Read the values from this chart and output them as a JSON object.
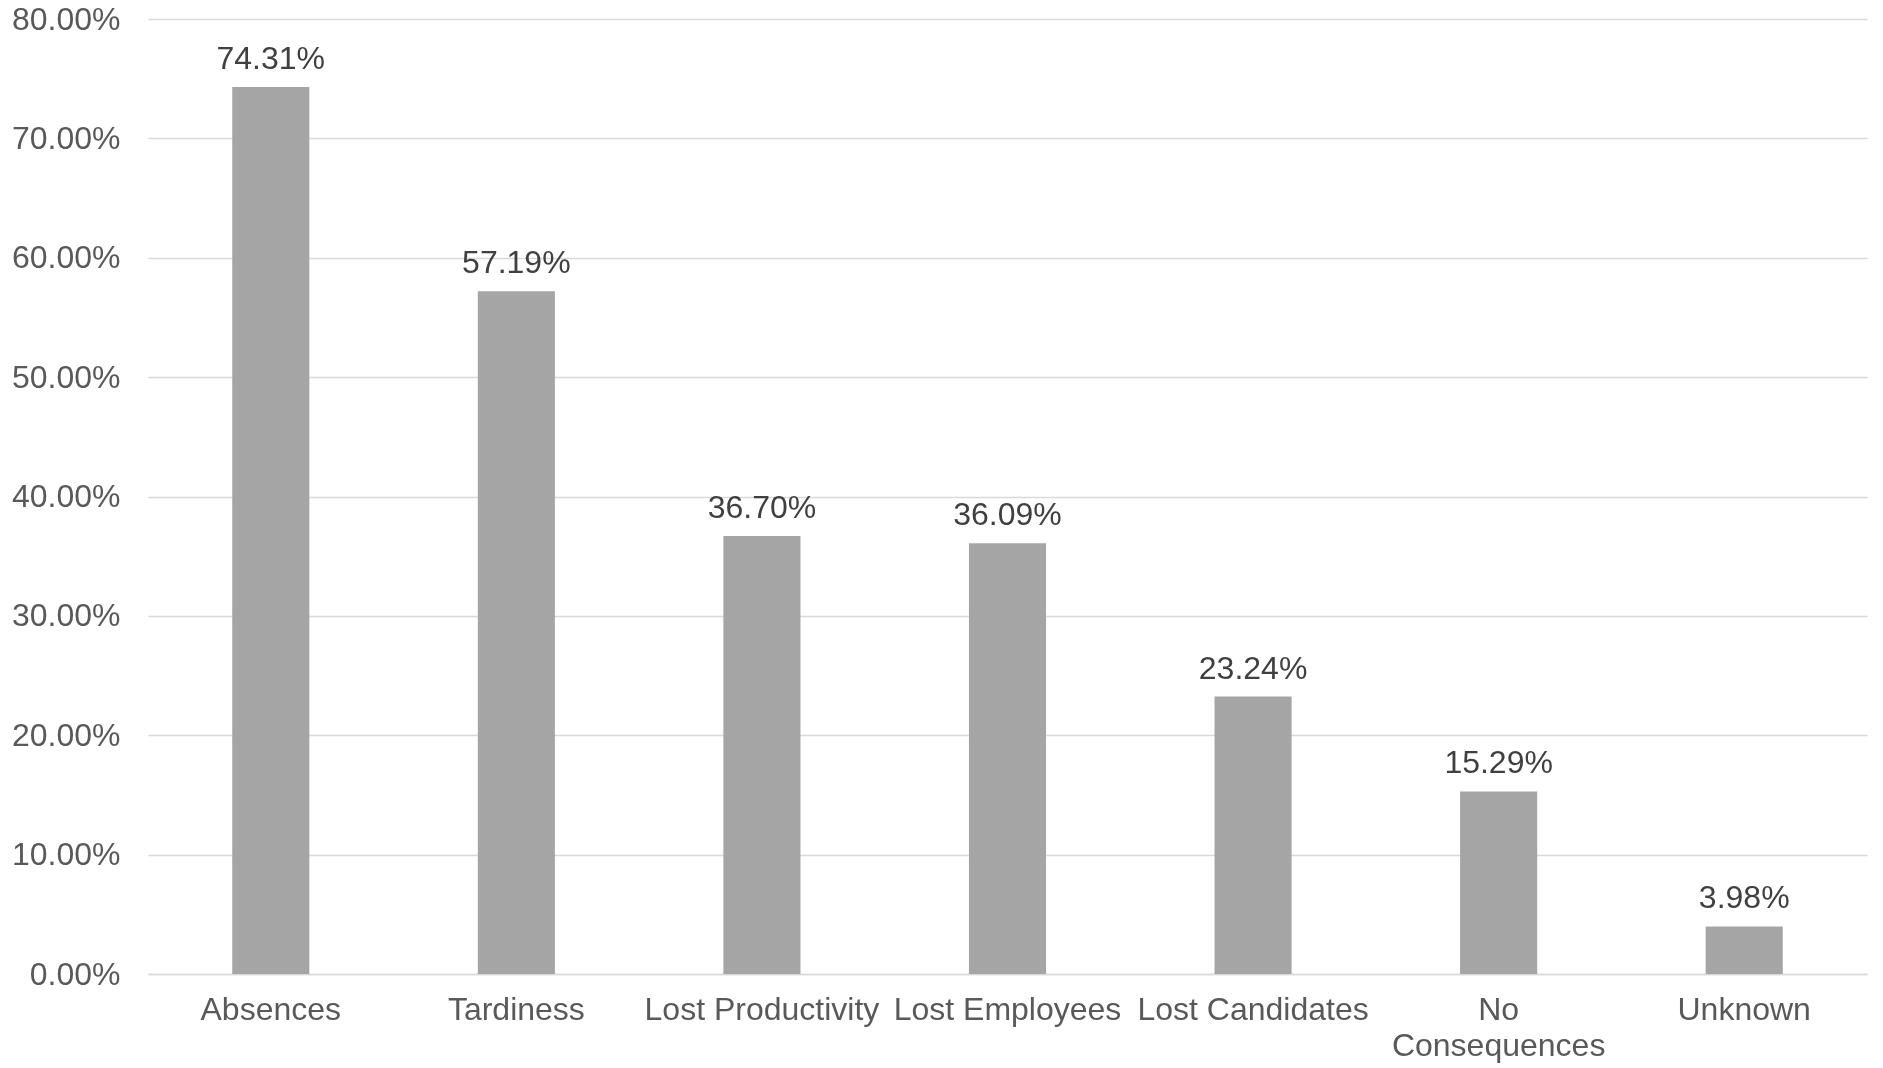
{
  "chart_data": {
    "type": "bar",
    "categories": [
      "Absences",
      "Tardiness",
      "Lost Productivity",
      "Lost Employees",
      "Lost Candidates",
      "No Consequences",
      "Unknown"
    ],
    "values": [
      74.31,
      57.19,
      36.7,
      36.09,
      23.24,
      15.29,
      3.98
    ],
    "value_labels": [
      "74.31%",
      "57.19%",
      "36.70%",
      "36.09%",
      "23.24%",
      "15.29%",
      "3.98%"
    ],
    "color": "#a5a5a5",
    "ylim": [
      0,
      80
    ],
    "yticks": [
      {
        "value": 0,
        "label": "0.00%"
      },
      {
        "value": 10,
        "label": "10.00%"
      },
      {
        "value": 20,
        "label": "20.00%"
      },
      {
        "value": 30,
        "label": "30.00%"
      },
      {
        "value": 40,
        "label": "40.00%"
      },
      {
        "value": 50,
        "label": "50.00%"
      },
      {
        "value": 60,
        "label": "60.00%"
      },
      {
        "value": 70,
        "label": "70.00%"
      },
      {
        "value": 80,
        "label": "80.00%"
      }
    ],
    "grid": "y"
  }
}
